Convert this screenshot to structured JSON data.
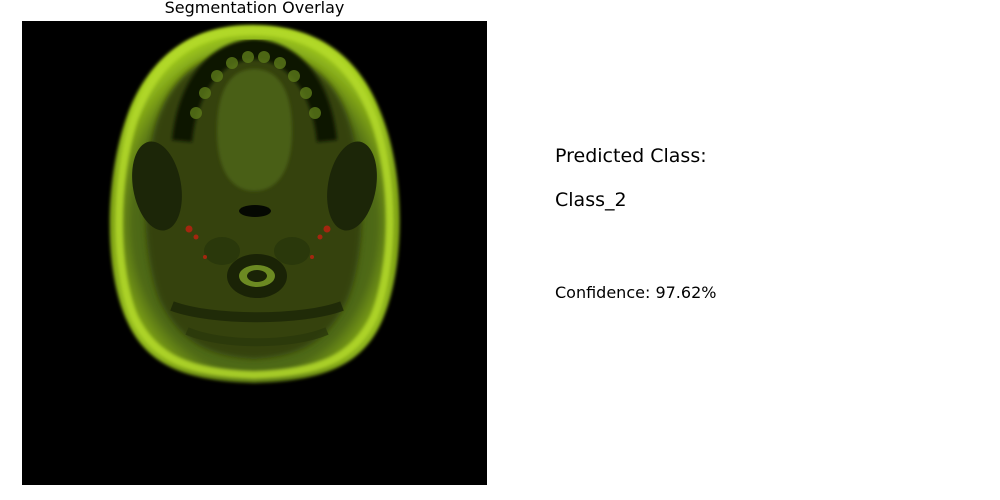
{
  "image_panel": {
    "title": "Segmentation Overlay"
  },
  "prediction": {
    "label": "Predicted Class:",
    "value": "Class_2",
    "confidence_text": "Confidence: 97.62%"
  },
  "colors": {
    "background": "#000000",
    "overlay_green": "#7fc000",
    "tissue_dark": "#2e3a10",
    "highlight_red": "#c02010"
  }
}
